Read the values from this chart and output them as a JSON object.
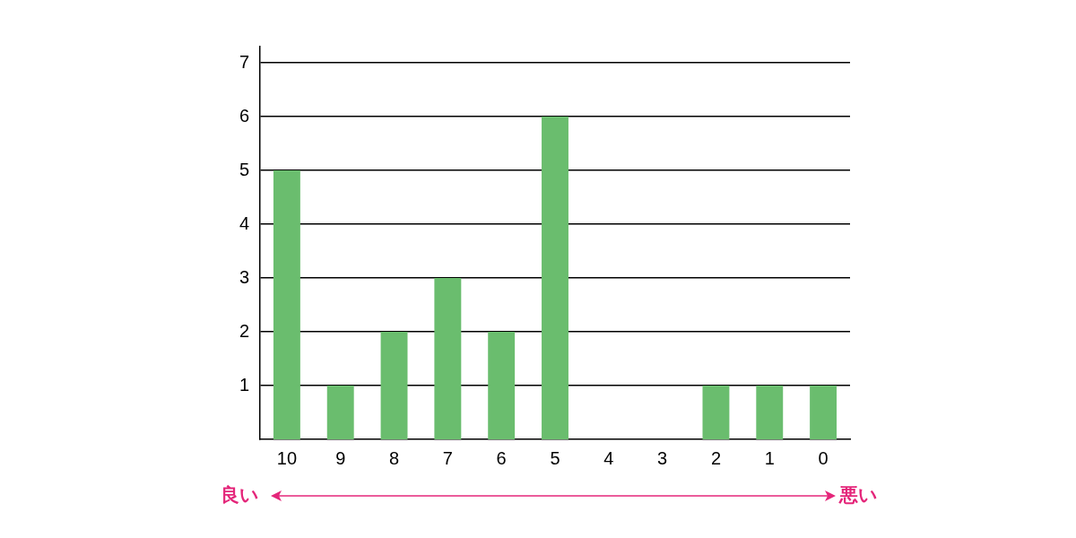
{
  "chart_data": {
    "type": "bar",
    "categories": [
      "10",
      "9",
      "8",
      "7",
      "6",
      "5",
      "4",
      "3",
      "2",
      "1",
      "0"
    ],
    "values": [
      5,
      1,
      2,
      3,
      2,
      6,
      0,
      0,
      1,
      1,
      1
    ],
    "color": "#6abd6e",
    "ylim": [
      0,
      7.3
    ],
    "yticks": [
      1,
      2,
      3,
      4,
      5,
      6,
      7
    ],
    "grid": "y",
    "legend": false,
    "annotations": [
      "良い",
      "悪い"
    ]
  }
}
